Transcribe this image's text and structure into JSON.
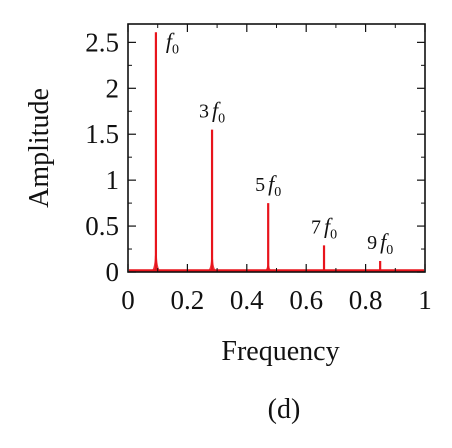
{
  "chart_data": {
    "type": "line",
    "xlabel": "Frequency",
    "ylabel": "Amplitude",
    "xlim": [
      0,
      1
    ],
    "ylim": [
      0,
      2.7
    ],
    "xticks": [
      "0",
      "0.2",
      "0.4",
      "0.6",
      "0.8",
      "1"
    ],
    "yticks": [
      "0",
      "0.5",
      "1",
      "1.5",
      "2",
      "2.5"
    ],
    "grid": false,
    "legend": "none",
    "color": "#e8141c",
    "series": [
      {
        "x": [
          0.094,
          0.283,
          0.472,
          0.66,
          0.849
        ],
        "values": [
          2.61,
          1.55,
          0.75,
          0.29,
          0.12
        ]
      }
    ],
    "annotations": [
      {
        "coef": "",
        "symbol": "f",
        "sub": "0"
      },
      {
        "coef": "3",
        "symbol": "f",
        "sub": "0"
      },
      {
        "coef": "5",
        "symbol": "f",
        "sub": "0"
      },
      {
        "coef": "7",
        "symbol": "f",
        "sub": "0"
      },
      {
        "coef": "9",
        "symbol": "f",
        "sub": "0"
      }
    ],
    "panel_label": "(d)"
  }
}
